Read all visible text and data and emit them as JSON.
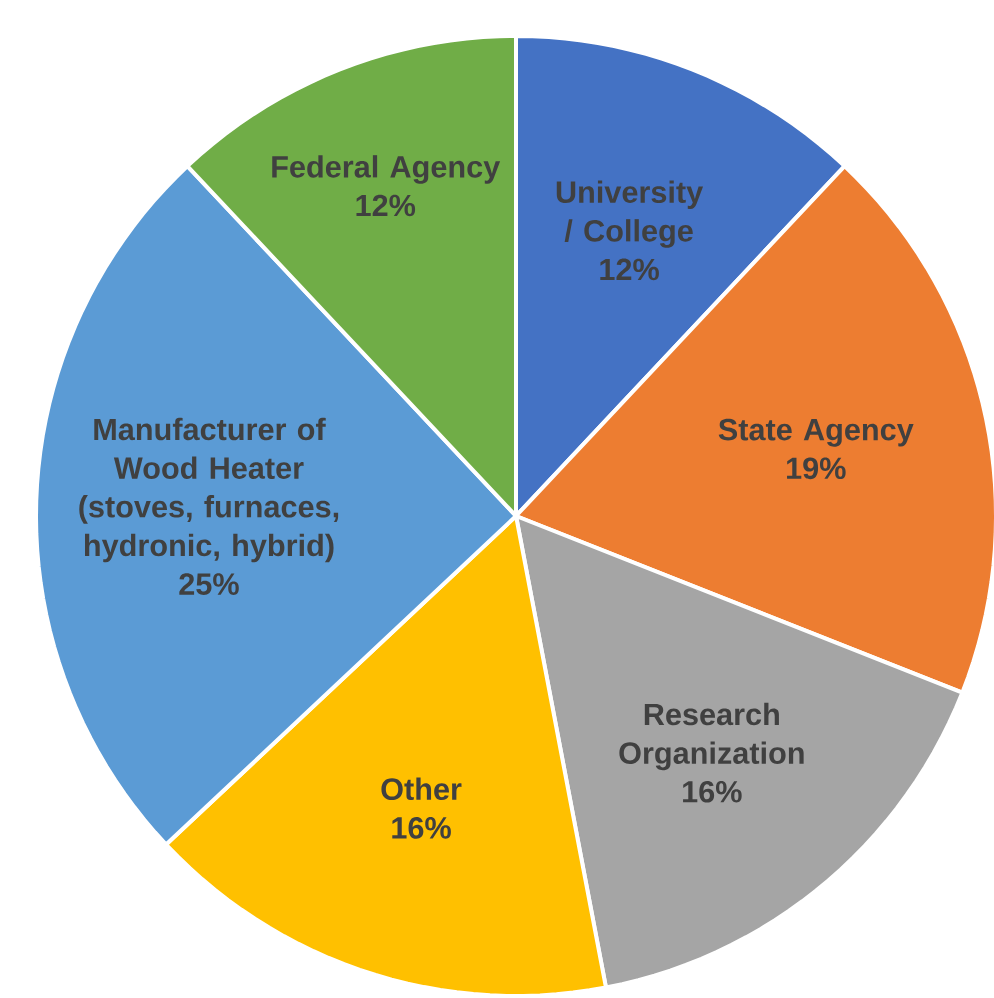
{
  "chart_data": {
    "type": "pie",
    "categories": [
      "University / College",
      "State Agency",
      "Research Organization",
      "Other",
      "Manufacturer of Wood Heater (stoves, furnaces, hydronic, hybrid)",
      "Federal Agency"
    ],
    "values": [
      12,
      19,
      16,
      16,
      25,
      12
    ],
    "value_labels": [
      "12%",
      "19%",
      "16%",
      "16%",
      "25%",
      "12%"
    ],
    "colors": [
      "#4472c4",
      "#ed7d31",
      "#a5a5a5",
      "#ffc000",
      "#5b9bd5",
      "#70ad47"
    ]
  }
}
